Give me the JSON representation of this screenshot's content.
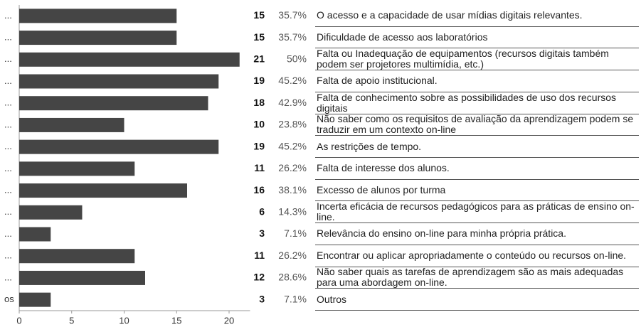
{
  "chart_data": {
    "type": "barh",
    "categories": [
      "O acesso e a capacidade de usar mídias digitais relevantes.",
      "Dificuldade de acesso aos laboratórios",
      "Falta ou Inadequação de equipamentos (recursos digitais também podem ser projetores multimídia, etc.)",
      "Falta de apoio institucional.",
      "Falta de conhecimento sobre as possibilidades de uso dos recursos digitais",
      "Não saber como os requisitos de avaliação da aprendizagem podem se traduzir em um contexto on-line",
      "As restrições de tempo.",
      "Falta de interesse dos alunos.",
      "Excesso de alunos por turma",
      "Incerta eficácia de recursos pedagógicos para as práticas de ensino on-line.",
      "Relevância do ensino on-line para minha própria prática.",
      "Encontrar ou aplicar apropriadamente o conteúdo ou recursos on-line.",
      "Não saber quais as tarefas de aprendizagem são as mais adequadas para uma abordagem on-line.",
      "Outros"
    ],
    "category_ticks": [
      "...",
      "...",
      "...",
      "...",
      "...",
      "...",
      "...",
      "...",
      "...",
      "...",
      "...",
      "...",
      "...",
      "os"
    ],
    "values": [
      15,
      15,
      21,
      19,
      18,
      10,
      19,
      11,
      16,
      6,
      3,
      11,
      12,
      3
    ],
    "percentages": [
      35.7,
      35.7,
      50,
      45.2,
      42.9,
      23.8,
      45.2,
      26.2,
      38.1,
      14.3,
      7.1,
      26.2,
      28.6,
      7.1
    ],
    "percentage_labels": [
      "35.7%",
      "35.7%",
      "50%",
      "45.2%",
      "42.9%",
      "23.8%",
      "45.2%",
      "26.2%",
      "38.1%",
      "14.3%",
      "7.1%",
      "26.2%",
      "28.6%",
      "7.1%"
    ],
    "color": "#454545",
    "xlim": [
      0,
      22
    ],
    "xticks": [
      0,
      5,
      10,
      15,
      20
    ]
  }
}
